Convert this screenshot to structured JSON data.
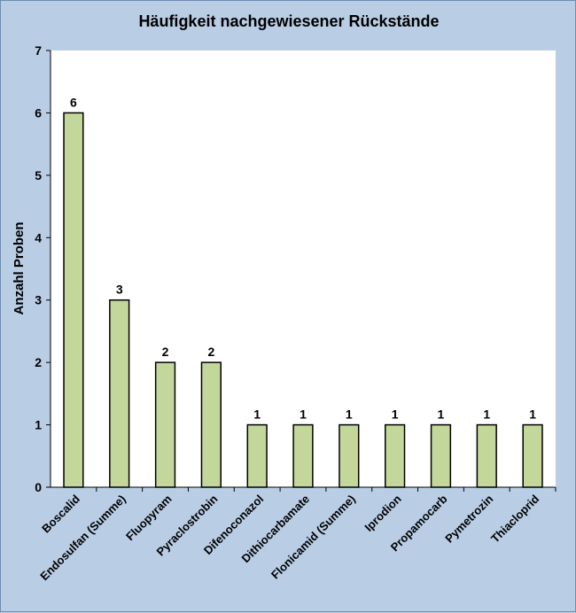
{
  "chart_data": {
    "type": "bar",
    "title": "Häufigkeit nachgewiesener Rückstände",
    "xlabel": "",
    "ylabel": "Anzahl Proben",
    "ylim": [
      0,
      7
    ],
    "yticks": [
      0,
      1,
      2,
      3,
      4,
      5,
      6,
      7
    ],
    "grid": false,
    "legend": "none",
    "categories": [
      "Boscalid",
      "Endosulfan (Summe)",
      "Fluopyram",
      "Pyraclostrobin",
      "Difenoconazol",
      "Dithiocarbamate",
      "Flonicamid (Summe)",
      "Iprodion",
      "Propamocarb",
      "Pymetrozin",
      "Thiacloprid"
    ],
    "values": [
      6,
      3,
      2,
      2,
      1,
      1,
      1,
      1,
      1,
      1,
      1
    ],
    "data_labels": [
      "6",
      "3",
      "2",
      "2",
      "1",
      "1",
      "1",
      "1",
      "1",
      "1",
      "1"
    ],
    "colors": {
      "bar_fill": "#c4d79b",
      "bar_stroke": "#000000",
      "plot_background": "#ffffff",
      "chart_background": "#b9cde5"
    }
  }
}
